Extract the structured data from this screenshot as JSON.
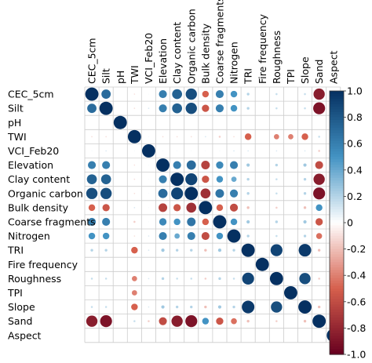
{
  "chart_data": {
    "type": "heatmap",
    "title": "",
    "xlabel": "",
    "ylabel": "",
    "variables": [
      "CEC_5cm",
      "Silt",
      "pH",
      "TWI",
      "VCI_Feb20",
      "Elevation",
      "Clay content",
      "Organic carbon",
      "Bulk density",
      "Coarse fragments",
      "Nitrogen",
      "TRI",
      "Fire frequency",
      "Roughness",
      "TPI",
      "Slope",
      "Sand",
      "Aspect"
    ],
    "x_labels": [
      "CEC_5cm",
      "Silt",
      "pH",
      "TWI",
      "VCI_Feb20",
      "Elevation",
      "Clay content",
      "Organic carbon",
      "Bulk density",
      "Coarse fragments",
      "Nitrogen",
      "TRI",
      "Fire frequency",
      "Roughness",
      "TPI",
      "Slope",
      "Sand",
      "Aspect"
    ],
    "y_labels": [
      "CEC_5cm",
      "Silt",
      "pH",
      "TWI",
      "VCI_Feb20",
      "Elevation",
      "Clay content",
      "Organic carbon",
      "Bulk density",
      "Coarse fragments",
      "Nitrogen",
      "TRI",
      "Fire frequency",
      "Roughness",
      "TPI",
      "Slope",
      "Sand",
      "Aspect"
    ],
    "x_label_text": [
      "CEC_5cm",
      "Silt",
      "pH",
      "TWI",
      "VCI_Feb20",
      "Elevation",
      "Clay content",
      "Organic carbon",
      "Bulk density",
      "Coarse fragments",
      "Nitrogen",
      "TRI",
      "Fire frequency",
      "Roughness",
      "TPI",
      "Slope",
      "Sand",
      "Aspect"
    ],
    "matrix": [
      [
        1,
        0.7,
        0,
        -0.1,
        0.05,
        0.6,
        0.75,
        0.85,
        -0.5,
        0.6,
        0.5,
        0.2,
        0,
        0.15,
        0,
        0.15,
        -0.85,
        0
      ],
      [
        0.7,
        1,
        0,
        -0.1,
        0.1,
        0.6,
        0.75,
        0.85,
        -0.55,
        0.6,
        0.5,
        0.2,
        0,
        0.15,
        0,
        0.15,
        -0.9,
        0
      ],
      [
        0,
        0,
        1,
        0,
        0,
        0,
        0,
        0,
        0,
        0,
        0,
        0,
        0,
        0,
        0,
        0,
        0,
        0
      ],
      [
        -0.1,
        -0.1,
        0,
        1,
        0.05,
        -0.1,
        -0.1,
        -0.1,
        0.1,
        -0.15,
        -0.1,
        -0.5,
        0,
        -0.4,
        -0.4,
        -0.5,
        0.15,
        0
      ],
      [
        0.05,
        0.1,
        0,
        0.05,
        1,
        0.05,
        0.05,
        0.05,
        0.05,
        0.05,
        0.1,
        0.1,
        0,
        0.1,
        0,
        0.1,
        -0.15,
        0
      ],
      [
        0.6,
        0.6,
        0,
        -0.1,
        0.05,
        1,
        0.6,
        0.7,
        -0.65,
        0.55,
        0.6,
        0.25,
        0,
        0.2,
        0,
        0.25,
        -0.6,
        0
      ],
      [
        0.75,
        0.75,
        0,
        -0.1,
        0.05,
        0.6,
        1,
        0.9,
        -0.55,
        0.5,
        0.4,
        0.2,
        0,
        0.15,
        0,
        0.2,
        -0.85,
        0
      ],
      [
        0.85,
        0.85,
        0,
        -0.1,
        0.05,
        0.7,
        0.9,
        1,
        -0.75,
        0.65,
        0.6,
        0.2,
        0,
        0.15,
        0,
        0.2,
        -0.9,
        0
      ],
      [
        -0.5,
        -0.55,
        0,
        0.1,
        0.05,
        -0.65,
        -0.55,
        -0.75,
        1,
        -0.5,
        -0.6,
        -0.2,
        0,
        -0.15,
        0,
        -0.2,
        0.5,
        0
      ],
      [
        0.6,
        0.6,
        0,
        -0.15,
        0.05,
        0.55,
        0.5,
        0.65,
        -0.5,
        1,
        0.5,
        0.25,
        0,
        0.2,
        0,
        0.25,
        -0.55,
        0
      ],
      [
        0.5,
        0.5,
        0,
        -0.1,
        0.1,
        0.6,
        0.4,
        0.6,
        -0.6,
        0.5,
        1,
        0.2,
        0,
        0.15,
        0,
        0.2,
        -0.45,
        0
      ],
      [
        0.2,
        0.2,
        0,
        -0.5,
        0.1,
        0.25,
        0.2,
        0.2,
        -0.2,
        0.25,
        0.2,
        1,
        0,
        0.9,
        0,
        0.95,
        -0.2,
        0
      ],
      [
        0,
        0,
        0,
        0,
        0,
        0,
        0,
        0,
        0,
        0,
        0,
        0,
        1,
        0,
        0,
        0,
        0,
        0
      ],
      [
        0.15,
        0.15,
        0,
        -0.4,
        0.1,
        0.2,
        0.15,
        0.15,
        -0.15,
        0.2,
        0.15,
        0.9,
        0,
        1,
        0,
        0.85,
        -0.15,
        0
      ],
      [
        0,
        0,
        0,
        -0.4,
        0,
        0,
        0,
        0,
        0,
        0,
        0,
        0,
        0,
        0,
        1,
        0,
        0,
        0
      ],
      [
        0.15,
        0.15,
        0,
        -0.5,
        0.1,
        0.25,
        0.2,
        0.2,
        -0.2,
        0.25,
        0.2,
        0.95,
        0,
        0.85,
        0,
        1,
        -0.2,
        0
      ],
      [
        -0.85,
        -0.9,
        0,
        0.15,
        -0.15,
        -0.6,
        -0.85,
        -0.9,
        0.5,
        -0.55,
        -0.45,
        -0.2,
        0,
        -0.15,
        0,
        -0.2,
        1,
        0
      ],
      [
        0,
        0,
        0,
        0,
        0,
        0,
        0,
        0,
        0,
        0,
        0,
        0,
        0,
        0,
        0,
        0,
        0,
        1
      ]
    ],
    "colorbar": {
      "range": [
        -1,
        1
      ],
      "ticks": [
        "1.0",
        "0.8",
        "0.6",
        "0.4",
        "0.2",
        "0",
        "-0.2",
        "-0.4",
        "-0.6",
        "-0.8",
        "-1.0"
      ]
    },
    "colors": {
      "negative_max": "#67001f",
      "negative_mid": "#d6604d",
      "neutral": "#ffffff",
      "positive_mid": "#4393c3",
      "positive_max": "#053061",
      "grid": "#cccccc",
      "text": "#000000"
    },
    "grid": true,
    "legend": "right colorbar"
  }
}
